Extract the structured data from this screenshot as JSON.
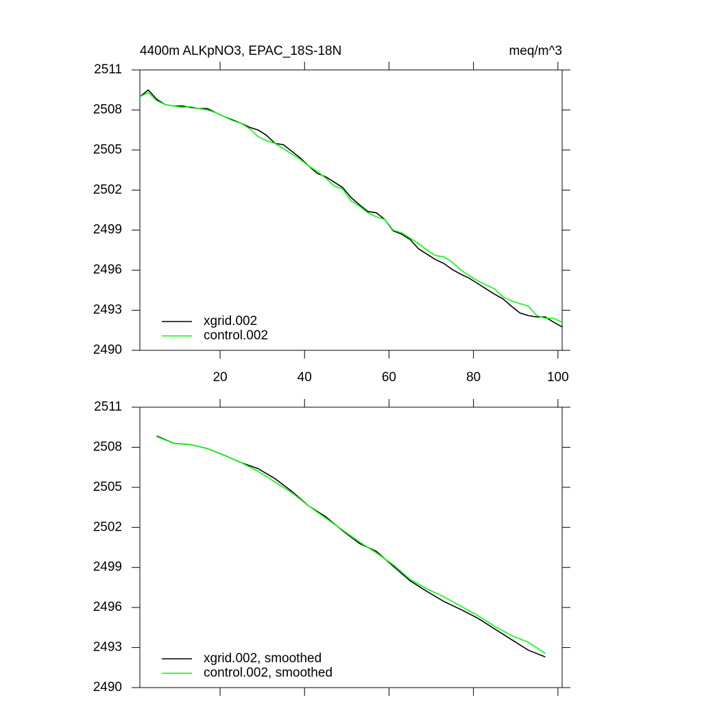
{
  "chart_data": [
    {
      "type": "line",
      "title": "4400m ALKpNO3, EPAC_18S-18N",
      "units_label": "meq/m^3",
      "x": [
        1,
        3,
        5,
        7,
        9,
        11,
        13,
        15,
        17,
        19,
        21,
        23,
        25,
        27,
        29,
        31,
        33,
        35,
        37,
        39,
        41,
        43,
        45,
        47,
        49,
        51,
        53,
        55,
        57,
        59,
        61,
        63,
        65,
        67,
        69,
        71,
        73,
        75,
        77,
        79,
        81,
        83,
        85,
        87,
        89,
        91,
        93,
        95,
        97,
        99,
        101
      ],
      "series": [
        {
          "name": "xgrid.002",
          "color": "#000000",
          "values": [
            2509.0,
            2509.5,
            2508.8,
            2508.4,
            2508.3,
            2508.3,
            2508.2,
            2508.1,
            2508.1,
            2507.8,
            2507.5,
            2507.25,
            2507.0,
            2506.7,
            2506.5,
            2506.1,
            2505.5,
            2505.4,
            2504.9,
            2504.4,
            2503.8,
            2503.25,
            2503.0,
            2502.6,
            2502.2,
            2501.45,
            2500.9,
            2500.4,
            2500.3,
            2499.8,
            2498.95,
            2498.7,
            2498.3,
            2497.6,
            2497.2,
            2496.8,
            2496.5,
            2496.05,
            2495.7,
            2495.4,
            2495.0,
            2494.6,
            2494.2,
            2493.85,
            2493.3,
            2492.8,
            2492.6,
            2492.5,
            2492.5,
            2492.1,
            2491.75
          ]
        },
        {
          "name": "control.002",
          "color": "#00ff00",
          "values": [
            2509.0,
            2509.3,
            2508.7,
            2508.4,
            2508.3,
            2508.2,
            2508.25,
            2508.1,
            2508.0,
            2507.8,
            2507.5,
            2507.2,
            2507.0,
            2506.6,
            2506.0,
            2505.7,
            2505.5,
            2505.1,
            2504.7,
            2504.3,
            2503.8,
            2503.4,
            2502.9,
            2502.3,
            2502.1,
            2501.2,
            2500.8,
            2500.3,
            2500.0,
            2499.8,
            2499.0,
            2498.8,
            2498.4,
            2498.0,
            2497.5,
            2497.1,
            2497.0,
            2496.6,
            2496.0,
            2495.6,
            2495.2,
            2494.9,
            2494.6,
            2494.0,
            2493.7,
            2493.5,
            2493.3,
            2492.6,
            2492.4,
            2492.4,
            2492.1
          ]
        }
      ],
      "xlim": [
        1,
        101
      ],
      "xticks": [
        20,
        40,
        60,
        80,
        100
      ],
      "xtick_labels": true,
      "ylim": [
        2490,
        2511
      ],
      "yticks": [
        2490,
        2493,
        2496,
        2499,
        2502,
        2505,
        2508,
        2511
      ],
      "legend": "lower left"
    },
    {
      "type": "line",
      "x": [
        5,
        9,
        13,
        17,
        21,
        25,
        29,
        33,
        37,
        41,
        45,
        49,
        53,
        57,
        61,
        65,
        69,
        73,
        77,
        81,
        85,
        89,
        93,
        97
      ],
      "series": [
        {
          "name": "xgrid.002, smoothed",
          "color": "#000000",
          "values": [
            2508.85,
            2508.3,
            2508.2,
            2507.9,
            2507.4,
            2506.85,
            2506.4,
            2505.65,
            2504.7,
            2503.6,
            2502.8,
            2501.75,
            2500.8,
            2500.2,
            2499.1,
            2498.0,
            2497.2,
            2496.45,
            2495.85,
            2495.2,
            2494.4,
            2493.6,
            2492.8,
            2492.3
          ]
        },
        {
          "name": "control.002, smoothed",
          "color": "#00ff00",
          "values": [
            2508.8,
            2508.3,
            2508.2,
            2507.9,
            2507.4,
            2506.85,
            2506.2,
            2505.4,
            2504.6,
            2503.6,
            2502.7,
            2501.8,
            2500.9,
            2500.1,
            2499.2,
            2498.1,
            2497.4,
            2496.8,
            2496.1,
            2495.4,
            2494.6,
            2493.9,
            2493.4,
            2492.55
          ]
        }
      ],
      "xlim": [
        1,
        101
      ],
      "xticks": [
        20,
        40,
        60,
        80,
        100
      ],
      "xtick_labels": false,
      "ylim": [
        2490,
        2511
      ],
      "yticks": [
        2490,
        2493,
        2496,
        2499,
        2502,
        2505,
        2508,
        2511
      ],
      "legend": "lower left"
    }
  ]
}
